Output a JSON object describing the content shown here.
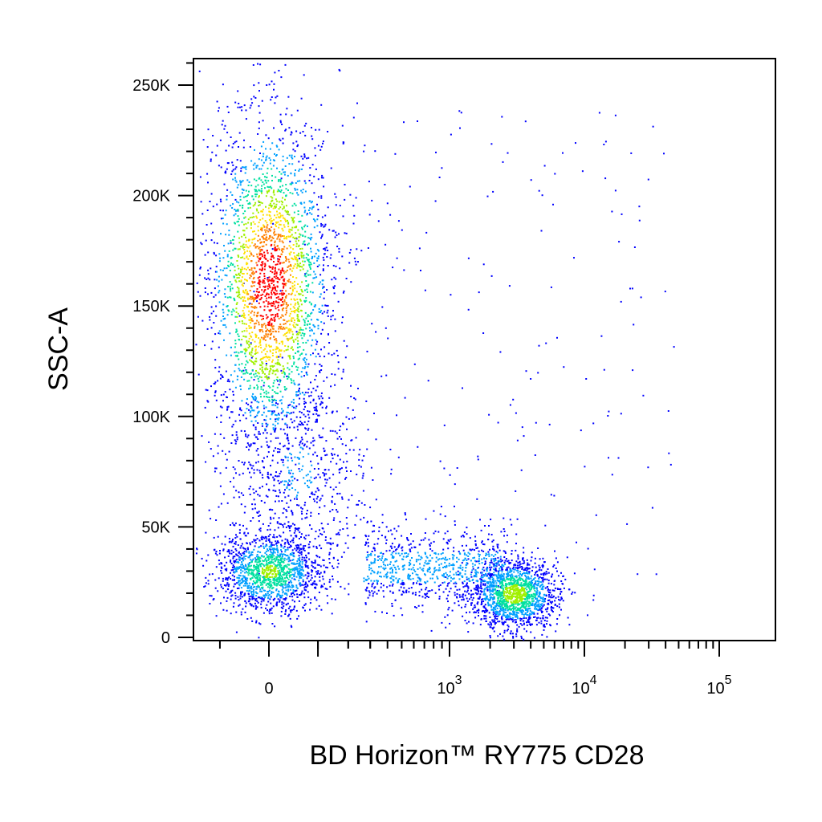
{
  "chart_data": {
    "type": "scatter",
    "title": "",
    "xlabel": "BD Horizon™ RY775 CD28",
    "ylabel": "SSC-A",
    "x_scale": "biexponential",
    "y_scale": "linear",
    "ylim": [
      0,
      262144
    ],
    "y_ticks": [
      {
        "value": 0,
        "label": "0"
      },
      {
        "value": 50000,
        "label": "50K"
      },
      {
        "value": 100000,
        "label": "100K"
      },
      {
        "value": 150000,
        "label": "150K"
      },
      {
        "value": 200000,
        "label": "200K"
      },
      {
        "value": 250000,
        "label": "250K"
      }
    ],
    "x_ticks": [
      {
        "value": 0,
        "base": "0",
        "exp": ""
      },
      {
        "value": 1000,
        "base": "10",
        "exp": "3"
      },
      {
        "value": 10000,
        "base": "10",
        "exp": "4"
      },
      {
        "value": 100000,
        "base": "10",
        "exp": "5"
      }
    ],
    "density_colormap": [
      "#0000ff",
      "#00a0ff",
      "#00e0a0",
      "#a0f000",
      "#ffe000",
      "#ff8000",
      "#ff0000"
    ],
    "populations": [
      {
        "x_center": 0,
        "y_center": 160000,
        "x_spread_decades": 0.35,
        "y_spread": 38000,
        "relative_density": 1.0
      },
      {
        "x_center": 0,
        "y_center": 30000,
        "x_spread_decades": 0.3,
        "y_spread": 9000,
        "relative_density": 0.55
      },
      {
        "x_center": 3000,
        "y_center": 20000,
        "x_spread_decades": 0.25,
        "y_spread": 8000,
        "relative_density": 0.6
      },
      {
        "x_center": 800,
        "y_center": 32000,
        "x_spread_decades": 0.8,
        "y_spread": 9000,
        "relative_density": 0.3
      },
      {
        "x_center": 50,
        "y_center": 75000,
        "x_spread_decades": 0.4,
        "y_spread": 25000,
        "relative_density": 0.25
      }
    ]
  }
}
